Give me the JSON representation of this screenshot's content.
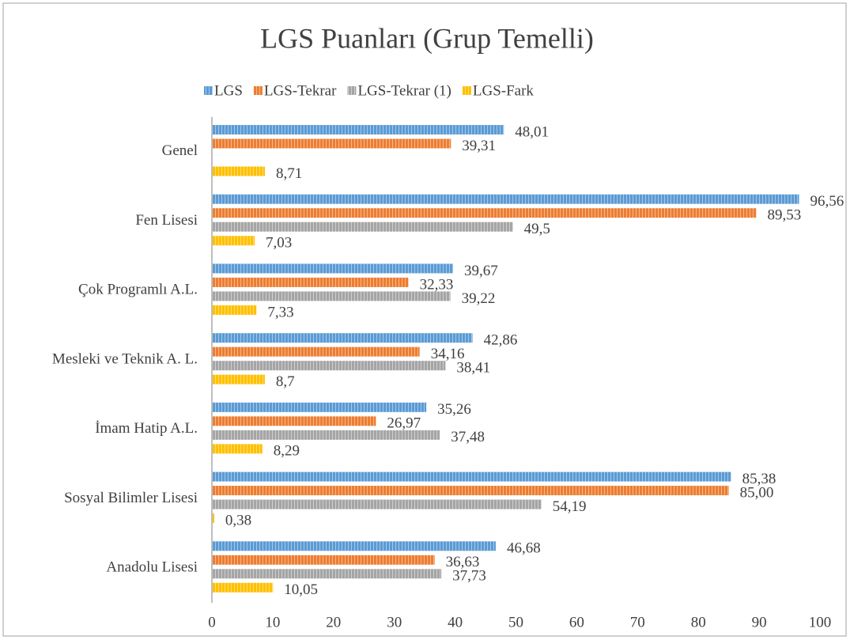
{
  "chart_data": {
    "type": "bar",
    "orientation": "horizontal",
    "title": "LGS Puanları (Grup Temelli)",
    "categories": [
      "Genel",
      "Fen Lisesi",
      "Çok Programlı A.L.",
      "Mesleki ve Teknik A. L.",
      "İmam Hatip A.L.",
      "Sosyal Bilimler Lisesi",
      "Anadolu Lisesi"
    ],
    "series": [
      {
        "name": "LGS",
        "color": "#5b9bd5",
        "values": [
          48.01,
          96.56,
          39.67,
          42.86,
          35.26,
          85.38,
          46.68
        ],
        "value_labels": [
          "48,01",
          "96,56",
          "39,67",
          "42,86",
          "35,26",
          "85,38",
          "46,68"
        ]
      },
      {
        "name": "LGS-Tekrar",
        "color": "#ed7d31",
        "values": [
          39.31,
          89.53,
          32.33,
          34.16,
          26.97,
          85,
          36.63
        ],
        "value_labels": [
          "39,31",
          "89,53",
          "32,33",
          "34,16",
          "26,97",
          "85,00",
          "36,63"
        ]
      },
      {
        "name": "LGS-Tekrar (1)",
        "color": "#a5a5a5",
        "values": [
          null,
          49.5,
          39.22,
          38.41,
          37.48,
          54.19,
          37.73
        ],
        "value_labels": [
          null,
          "49,5",
          "39,22",
          "38,41",
          "37,48",
          "54,19",
          "37,73"
        ]
      },
      {
        "name": "LGS-Fark",
        "color": "#ffc000",
        "values": [
          8.71,
          7.03,
          7.33,
          8.7,
          8.29,
          0.38,
          10.05
        ],
        "value_labels": [
          "8,71",
          "7,03",
          "7,33",
          "8,7",
          "8,29",
          "0,38",
          "10,05"
        ]
      }
    ],
    "xlim": [
      0,
      100
    ],
    "xticks": [
      0,
      10,
      20,
      30,
      40,
      50,
      60,
      70,
      80,
      90,
      100
    ],
    "grid": false,
    "legend": "top"
  }
}
